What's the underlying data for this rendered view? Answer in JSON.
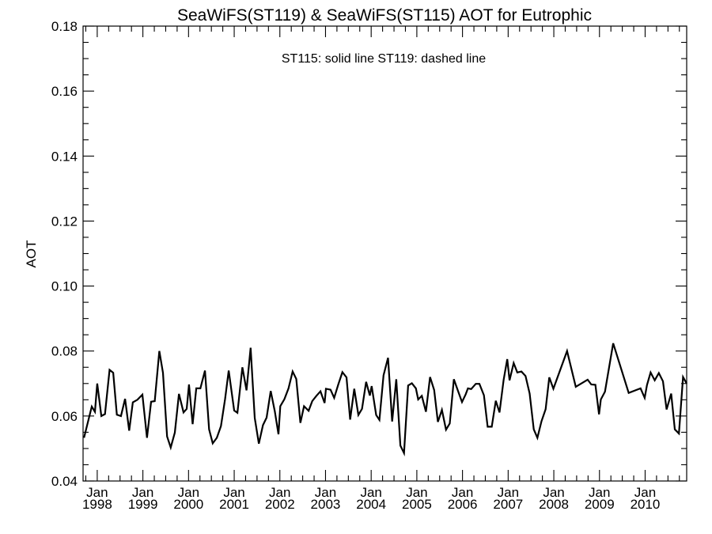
{
  "chart_data": {
    "type": "line",
    "title": "SeaWiFS(ST119) & SeaWiFS(ST115)  AOT for Eutrophic",
    "annotation": "ST115: solid line   ST119: dashed line",
    "xlabel": "",
    "ylabel": "AOT",
    "xlim": [
      1997.69,
      2010.91
    ],
    "ylim": [
      0.04,
      0.18
    ],
    "yticks": [
      0.04,
      0.06,
      0.08,
      0.1,
      0.12,
      0.14,
      0.16,
      0.18
    ],
    "ytick_labels": [
      "0.04",
      "0.06",
      "0.08",
      "0.10",
      "0.12",
      "0.14",
      "0.16",
      "0.18"
    ],
    "xticks": [
      1998,
      1999,
      2000,
      2001,
      2002,
      2003,
      2004,
      2005,
      2006,
      2007,
      2008,
      2009,
      2010
    ],
    "xtick_month_label": "Jan",
    "xtick_labels": [
      "1998",
      "1999",
      "2000",
      "2001",
      "2002",
      "2003",
      "2004",
      "2005",
      "2006",
      "2007",
      "2008",
      "2009",
      "2010"
    ],
    "grid": false,
    "color": "#000000",
    "series": [
      {
        "name": "ST115",
        "style": "solid",
        "x": [
          1997.71,
          1997.88,
          1997.95,
          1998.0,
          1998.09,
          1998.17,
          1998.27,
          1998.35,
          1998.43,
          1998.52,
          1998.61,
          1998.7,
          1998.78,
          1998.88,
          1998.99,
          1999.09,
          1999.18,
          1999.26,
          1999.36,
          1999.44,
          1999.53,
          1999.61,
          1999.7,
          1999.79,
          1999.89,
          1999.96,
          2000.01,
          2000.09,
          2000.17,
          2000.26,
          2000.36,
          2000.45,
          2000.53,
          2000.62,
          2000.71,
          2000.8,
          2000.88,
          2001.0,
          2001.07,
          2001.18,
          2001.27,
          2001.36,
          2001.45,
          2001.54,
          2001.63,
          2001.71,
          2001.8,
          2001.89,
          2001.97,
          2002.01,
          2002.1,
          2002.19,
          2002.28,
          2002.36,
          2002.45,
          2002.53,
          2002.63,
          2002.71,
          2002.8,
          2002.89,
          2002.98,
          2003.01,
          2003.11,
          2003.19,
          2003.28,
          2003.37,
          2003.46,
          2003.54,
          2003.63,
          2003.72,
          2003.8,
          2003.89,
          2003.97,
          2004.01,
          2004.11,
          2004.18,
          2004.27,
          2004.37,
          2004.46,
          2004.55,
          2004.64,
          2004.72,
          2004.81,
          2004.89,
          2004.98,
          2005.03,
          2005.11,
          2005.2,
          2005.29,
          2005.38,
          2005.46,
          2005.55,
          2005.64,
          2005.72,
          2005.81,
          2005.9,
          2005.99,
          2006.07,
          2006.12,
          2006.19,
          2006.29,
          2006.37,
          2006.47,
          2006.55,
          2006.64,
          2006.73,
          2006.81,
          2006.9,
          2006.98,
          2007.03,
          2007.12,
          2007.2,
          2007.29,
          2007.38,
          2007.47,
          2007.56,
          2007.64,
          2007.73,
          2007.82,
          2007.9,
          2007.99,
          2008.29,
          2008.48,
          2008.74,
          2008.82,
          2008.91,
          2008.99,
          2009.03,
          2009.12,
          2009.3,
          2009.64,
          2009.9,
          2009.99,
          2010.04,
          2010.12,
          2010.21,
          2010.3,
          2010.39,
          2010.47,
          2010.57,
          2010.65,
          2010.74,
          2010.83,
          2010.91
        ],
        "y": [
          0.0533,
          0.0629,
          0.0613,
          0.07,
          0.06,
          0.0606,
          0.0742,
          0.0733,
          0.0604,
          0.06,
          0.0653,
          0.0555,
          0.0642,
          0.065,
          0.0666,
          0.0533,
          0.0644,
          0.0646,
          0.08,
          0.0733,
          0.0537,
          0.0503,
          0.0549,
          0.0668,
          0.0611,
          0.0622,
          0.0697,
          0.0575,
          0.0685,
          0.0685,
          0.074,
          0.0559,
          0.0516,
          0.0533,
          0.0569,
          0.0652,
          0.074,
          0.0617,
          0.061,
          0.075,
          0.0679,
          0.081,
          0.0594,
          0.0515,
          0.0572,
          0.0595,
          0.0677,
          0.0614,
          0.0544,
          0.063,
          0.0652,
          0.0685,
          0.0737,
          0.0714,
          0.0579,
          0.063,
          0.0616,
          0.0646,
          0.0662,
          0.0676,
          0.064,
          0.0684,
          0.0681,
          0.0656,
          0.0697,
          0.0735,
          0.0719,
          0.0589,
          0.0684,
          0.0603,
          0.0622,
          0.0705,
          0.0663,
          0.0692,
          0.0603,
          0.0588,
          0.0725,
          0.0779,
          0.0583,
          0.0713,
          0.0509,
          0.0486,
          0.0694,
          0.0701,
          0.0685,
          0.0651,
          0.0662,
          0.0613,
          0.072,
          0.068,
          0.0582,
          0.0619,
          0.0558,
          0.0577,
          0.0713,
          0.0678,
          0.0643,
          0.0667,
          0.0685,
          0.0683,
          0.0699,
          0.0699,
          0.0664,
          0.0567,
          0.0567,
          0.0647,
          0.0611,
          0.0711,
          0.0775,
          0.071,
          0.0763,
          0.0734,
          0.0737,
          0.0723,
          0.0669,
          0.0559,
          0.0533,
          0.0584,
          0.0621,
          0.0719,
          0.0684,
          0.08,
          0.069,
          0.0712,
          0.0697,
          0.0696,
          0.0605,
          0.0651,
          0.0675,
          0.0824,
          0.0671,
          0.0685,
          0.0656,
          0.0695,
          0.0734,
          0.071,
          0.0732,
          0.0707,
          0.062,
          0.0669,
          0.0559,
          0.0546,
          0.072,
          0.07
        ]
      }
    ]
  }
}
